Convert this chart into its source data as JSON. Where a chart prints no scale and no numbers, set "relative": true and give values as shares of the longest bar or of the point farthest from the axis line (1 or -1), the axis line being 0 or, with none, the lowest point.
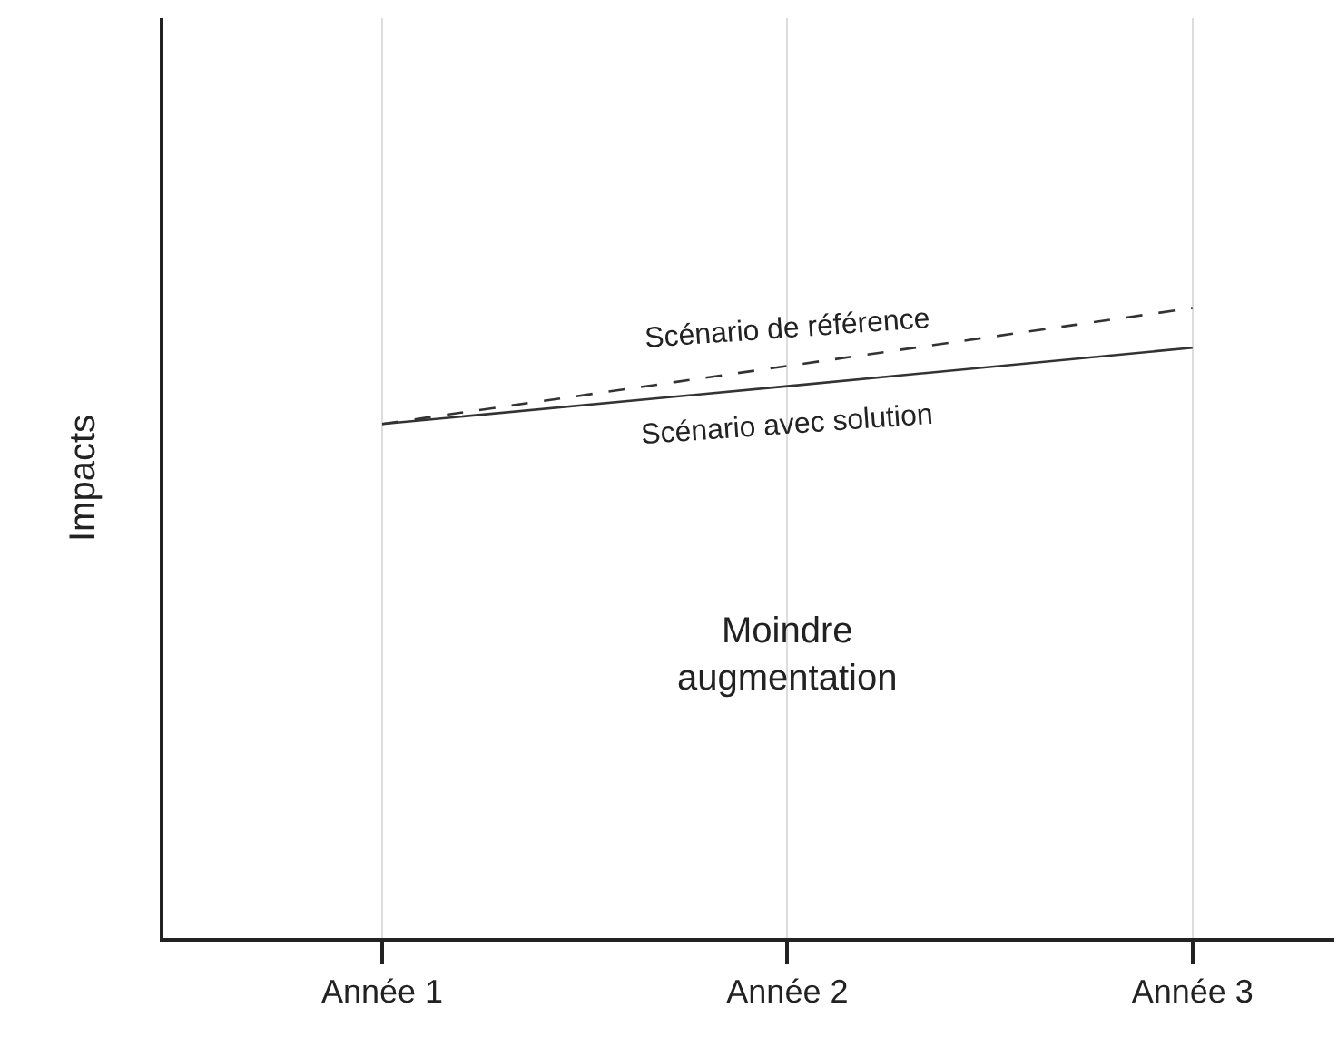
{
  "chart_data": {
    "type": "line",
    "relative": true,
    "ylabel": "Impacts",
    "categories": [
      "Année 1",
      "Année 2",
      "Année 3"
    ],
    "series": [
      {
        "name": "Scénario de référence",
        "color": "#333333",
        "line_style": "dashed",
        "values": [
          0.816,
          0.908,
          1
        ]
      },
      {
        "name": "Scénario avec solution",
        "color": "#333333",
        "line_style": "solid",
        "values": [
          0.816,
          0.876,
          0.937
        ]
      }
    ],
    "annotations": [
      "Moindre augmentation"
    ],
    "grid": "x",
    "legend": false,
    "marker": "none"
  }
}
